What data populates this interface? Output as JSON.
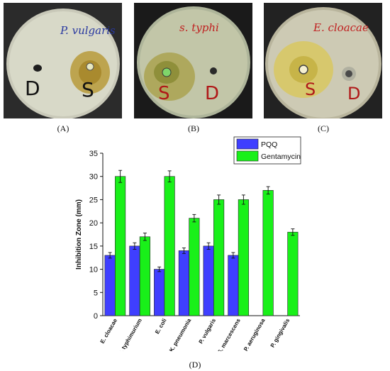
{
  "panels": [
    {
      "label": "(A)",
      "plate_text": "P. vulgaris",
      "marks": [
        "D",
        "S"
      ]
    },
    {
      "label": "(B)",
      "plate_text": "s. typhi",
      "marks": [
        "S",
        "D"
      ]
    },
    {
      "label": "(C)",
      "plate_text": "E. cloacae",
      "marks": [
        "S",
        "D"
      ]
    }
  ],
  "chart_data": {
    "type": "bar",
    "panel_label": "(D)",
    "ylabel": "Inhibition Zone (mm)",
    "xlabel": "",
    "ylim": [
      0,
      35
    ],
    "yticks": [
      0,
      5,
      10,
      15,
      20,
      25,
      30,
      35
    ],
    "categories": [
      "E. cloacae",
      "S. typhimurium",
      "E. coli",
      "K. pneumonia",
      "P. vulgaris",
      "S. marcescens",
      "P. aeruginosa",
      "P. gingivalis"
    ],
    "series": [
      {
        "name": "PQQ",
        "color": "#3f3fff",
        "values": [
          13,
          15,
          10,
          14,
          15,
          13,
          null,
          null
        ],
        "errors": [
          0.6,
          0.7,
          0.5,
          0.6,
          0.7,
          0.6,
          null,
          null
        ]
      },
      {
        "name": "Gentamycin",
        "color": "#19f019",
        "values": [
          30,
          17,
          30,
          21,
          25,
          25,
          27,
          18
        ],
        "errors": [
          1.3,
          0.8,
          1.2,
          0.8,
          1.0,
          1.0,
          0.8,
          0.7
        ]
      }
    ],
    "legend_position": "top-right",
    "grid": false
  }
}
